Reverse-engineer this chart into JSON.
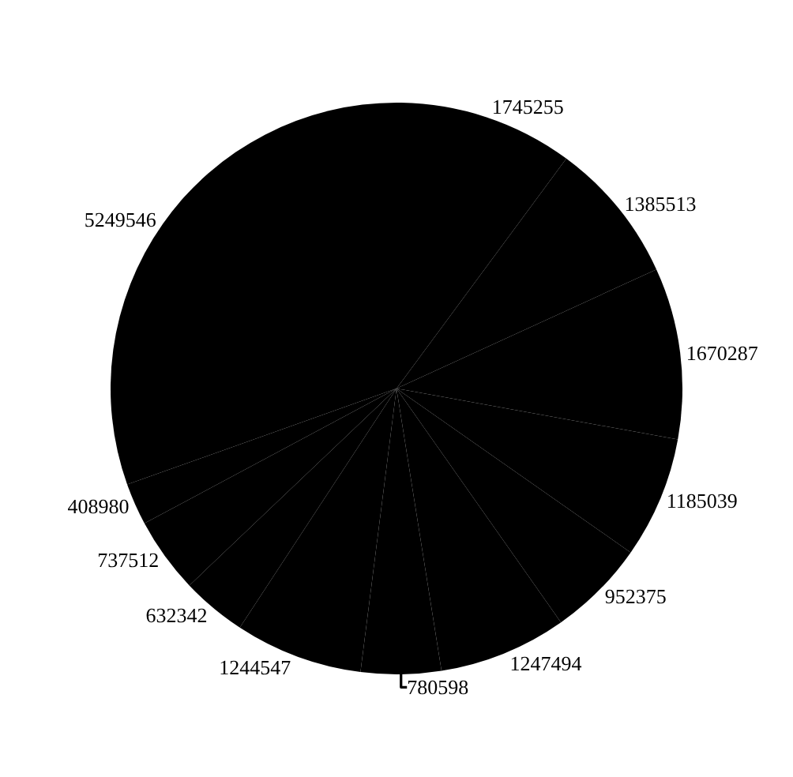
{
  "chart_data": {
    "type": "pie",
    "categories": [
      null,
      null,
      null,
      null,
      null,
      null,
      null,
      null,
      null,
      null,
      null,
      null
    ],
    "values": [
      1745255,
      1385513,
      1670287,
      1185039,
      952375,
      1247494,
      780598,
      1244547,
      632342,
      737512,
      408980,
      5249546
    ],
    "colors": [
      "#000000",
      "#000000",
      "#000000",
      "#000000",
      "#000000",
      "#000000",
      "#000000",
      "#000000",
      "#000000",
      "#000000",
      "#000000",
      "#000000"
    ],
    "data_labels": true,
    "legend": false
  }
}
